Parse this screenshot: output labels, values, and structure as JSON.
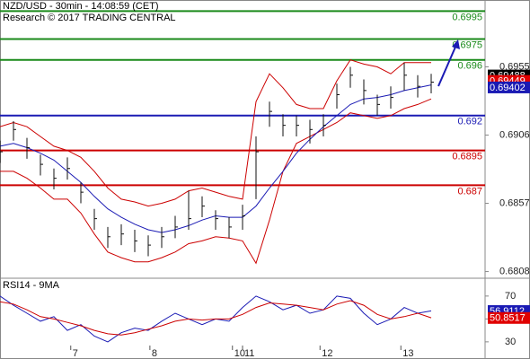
{
  "chart_data": [
    {
      "type": "ohlc",
      "title": "NZD/USD - 30min - 14:08:59 (CET)",
      "subtitle": "Research © 2017 TRADING CENTRAL",
      "x": [
        0,
        8,
        16,
        24,
        32,
        40,
        48,
        56,
        64,
        72,
        80,
        88,
        96,
        104,
        112,
        120,
        128,
        136,
        144,
        152,
        160,
        168,
        176,
        184,
        192,
        200,
        208,
        216,
        224,
        232,
        240,
        248,
        256
      ],
      "high": [
        0.6902,
        0.6916,
        0.6904,
        0.6892,
        0.6882,
        0.689,
        0.6872,
        0.6853,
        0.684,
        0.6842,
        0.6838,
        0.6834,
        0.684,
        0.6848,
        0.6866,
        0.6862,
        0.6852,
        0.6847,
        0.6856,
        0.6905,
        0.693,
        0.6921,
        0.692,
        0.6917,
        0.6921,
        0.6943,
        0.6955,
        0.6946,
        0.6935,
        0.6941,
        0.6958,
        0.6949,
        0.695
      ],
      "low": [
        0.6886,
        0.6902,
        0.6889,
        0.6877,
        0.6867,
        0.6874,
        0.6857,
        0.6838,
        0.6825,
        0.6827,
        0.6822,
        0.6819,
        0.6825,
        0.6832,
        0.6838,
        0.6847,
        0.6838,
        0.6832,
        0.6838,
        0.686,
        0.6912,
        0.6905,
        0.6905,
        0.69,
        0.6905,
        0.6925,
        0.694,
        0.6928,
        0.692,
        0.6925,
        0.6938,
        0.6933,
        0.6936
      ],
      "close": [
        0.6894,
        0.691,
        0.6897,
        0.6885,
        0.6875,
        0.6882,
        0.6865,
        0.6846,
        0.6833,
        0.6835,
        0.683,
        0.6827,
        0.6833,
        0.684,
        0.6846,
        0.6855,
        0.6846,
        0.684,
        0.6848,
        0.6894,
        0.6923,
        0.6913,
        0.6913,
        0.691,
        0.6913,
        0.6935,
        0.6949,
        0.6938,
        0.6928,
        0.6933,
        0.6949,
        0.6941,
        0.6944
      ],
      "bar_color": "#111111",
      "overlays": [
        {
          "color": "#cc0000",
          "values": [
            0.6912,
            0.6915,
            0.6912,
            0.6905,
            0.6898,
            0.6895,
            0.689,
            0.688,
            0.6868,
            0.686,
            0.6858,
            0.6855,
            0.6857,
            0.686,
            0.6866,
            0.6868,
            0.6865,
            0.6862,
            0.686,
            0.693,
            0.695,
            0.694,
            0.6928,
            0.6925,
            0.6925,
            0.6945,
            0.696,
            0.6957,
            0.6955,
            0.695,
            0.6958,
            0.6958,
            0.6958
          ]
        },
        {
          "color": "#cc0000",
          "values": [
            0.688,
            0.688,
            0.6875,
            0.6868,
            0.686,
            0.686,
            0.685,
            0.6835,
            0.6822,
            0.6818,
            0.6815,
            0.6815,
            0.6818,
            0.6822,
            0.6828,
            0.683,
            0.6833,
            0.6832,
            0.683,
            0.6814,
            0.6845,
            0.688,
            0.69,
            0.6905,
            0.691,
            0.6915,
            0.6922,
            0.692,
            0.6918,
            0.692,
            0.6925,
            0.6928,
            0.6932
          ]
        },
        {
          "color": "#1a1ab4",
          "values": [
            0.6898,
            0.69,
            0.6897,
            0.6893,
            0.6888,
            0.688,
            0.6872,
            0.6862,
            0.6853,
            0.6847,
            0.6842,
            0.6838,
            0.6836,
            0.6838,
            0.6841,
            0.6845,
            0.6848,
            0.6847,
            0.6847,
            0.6855,
            0.6868,
            0.688,
            0.6893,
            0.6903,
            0.6912,
            0.692,
            0.6928,
            0.6932,
            0.6933,
            0.6935,
            0.6938,
            0.694,
            0.6942
          ]
        }
      ],
      "levels": [
        {
          "value": 0.6995,
          "color": "#1a8a1a"
        },
        {
          "value": 0.6975,
          "color": "#1a8a1a"
        },
        {
          "value": 0.696,
          "color": "#1a8a1a"
        },
        {
          "value": 0.692,
          "color": "#1a1ab4"
        },
        {
          "value": 0.6895,
          "color": "#cc0000"
        },
        {
          "value": 0.687,
          "color": "#cc0000"
        }
      ],
      "tags": [
        {
          "value": 0.69488,
          "color": "#000000"
        },
        {
          "value": 0.69449,
          "color": "#e00000"
        },
        {
          "value": 0.69402,
          "color": "#1a1ab4"
        }
      ],
      "xlim": [
        0,
        288
      ],
      "ylim": [
        0.68045,
        0.7003
      ],
      "yticks": [
        0.6955,
        0.6906,
        0.6857,
        0.6808
      ]
    },
    {
      "type": "line",
      "title": "RSI14 - 9MA",
      "x": [
        0,
        8,
        16,
        24,
        32,
        40,
        48,
        56,
        64,
        72,
        80,
        88,
        96,
        104,
        112,
        120,
        128,
        136,
        144,
        152,
        160,
        168,
        176,
        184,
        192,
        200,
        208,
        216,
        224,
        232,
        240,
        248,
        256
      ],
      "series": [
        {
          "color": "#1a1ab4",
          "values": [
            70,
            62,
            55,
            48,
            52,
            40,
            45,
            35,
            30,
            38,
            42,
            40,
            48,
            55,
            50,
            45,
            50,
            48,
            60,
            70,
            65,
            58,
            62,
            55,
            58,
            70,
            68,
            55,
            45,
            50,
            60,
            55,
            57
          ]
        },
        {
          "color": "#cc0000",
          "values": [
            65,
            63,
            58,
            52,
            50,
            47,
            44,
            40,
            37,
            36,
            38,
            41,
            44,
            48,
            50,
            49,
            50,
            50,
            54,
            60,
            64,
            63,
            62,
            60,
            58,
            63,
            66,
            62,
            54,
            50,
            52,
            55,
            51
          ]
        }
      ],
      "tags": [
        {
          "value": 56.9112,
          "color": "#1a1ab4"
        },
        {
          "value": 50.8517,
          "color": "#e00000"
        }
      ],
      "xlim": [
        0,
        288
      ],
      "ylim": [
        15,
        84
      ],
      "yticks": [
        70,
        50,
        30
      ],
      "xticks": [
        {
          "value": 42,
          "label": "7"
        },
        {
          "value": 89,
          "label": "8"
        },
        {
          "value": 138,
          "label": "10"
        },
        {
          "value": 144,
          "label": "11"
        },
        {
          "value": 190,
          "label": "12"
        },
        {
          "value": 238,
          "label": "13"
        }
      ]
    }
  ]
}
